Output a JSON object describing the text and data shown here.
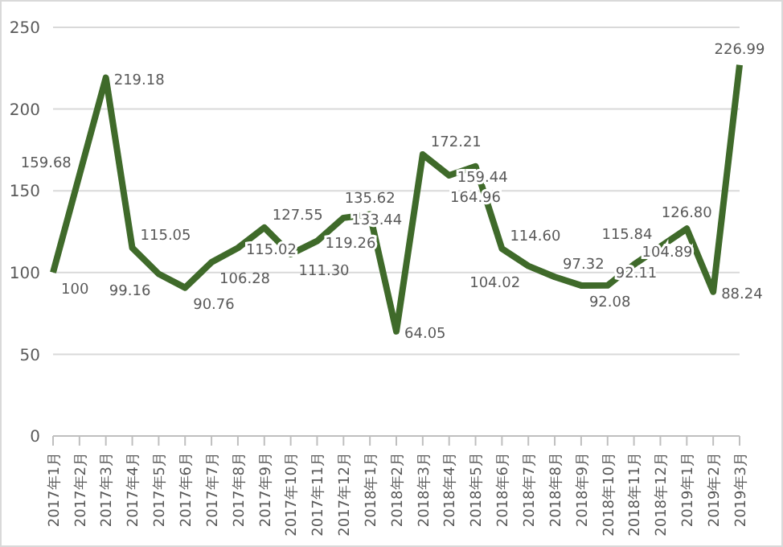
{
  "chart_data": {
    "type": "line",
    "categories": [
      "2017年1月",
      "2017年2月",
      "2017年3月",
      "2017年4月",
      "2017年5月",
      "2017年6月",
      "2017年7月",
      "2017年8月",
      "2017年9月",
      "2017年10月",
      "2017年11月",
      "2017年12月",
      "2018年1月",
      "2018年2月",
      "2018年3月",
      "2018年4月",
      "2018年5月",
      "2018年6月",
      "2018年7月",
      "2018年8月",
      "2018年9月",
      "2018年10月",
      "2018年11月",
      "2018年12月",
      "2019年1月",
      "2019年2月",
      "2019年3月"
    ],
    "series": [
      {
        "color": "#3f6a2a",
        "values": [
          100,
          159.68,
          219.18,
          115.05,
          99.16,
          90.76,
          106.28,
          115.02,
          127.55,
          111.3,
          119.26,
          133.44,
          135.62,
          64.05,
          172.21,
          159.44,
          164.96,
          114.6,
          104.02,
          97.32,
          92.08,
          92.11,
          104.89,
          115.84,
          126.8,
          88.24,
          226.99
        ],
        "value_labels": [
          "100",
          "159.68",
          "219.18",
          "115.05",
          "99.16",
          "90.76",
          "106.28",
          "115.02",
          "127.55",
          "111.30",
          "119.26",
          "133.44",
          "135.62",
          "64.05",
          "172.21",
          "159.44",
          "164.96",
          "114.60",
          "104.02",
          "97.32",
          "92.08",
          "92.11",
          "104.89",
          "115.84",
          "126.80",
          "88.24",
          "226.99"
        ]
      }
    ],
    "ylim": [
      0,
      250
    ],
    "yticks": [
      0,
      50,
      100,
      150,
      200,
      250
    ],
    "grid": "y",
    "legend": false,
    "marker": "none",
    "line_style": "solid"
  }
}
